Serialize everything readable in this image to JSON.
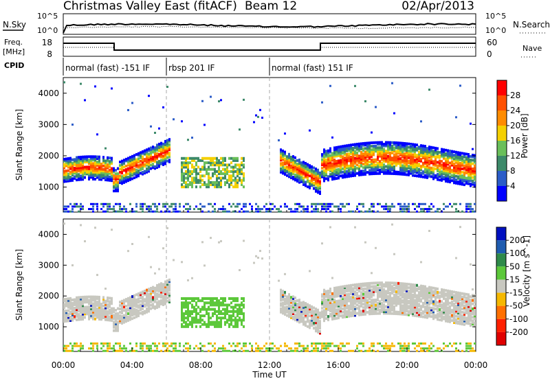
{
  "header": {
    "title": "Christmas Valley East (fitACF)",
    "beam": "Beam 12",
    "date": "02/Apr/2013"
  },
  "noise_panel": {
    "left_label": "N.Sky",
    "right_label": "N.Search",
    "left_ticks": [
      "10^5",
      "10^0"
    ],
    "right_ticks": [
      "10^5",
      "10^0"
    ]
  },
  "freq_panel": {
    "left_label_1": "Freq.",
    "left_label_2": "[MHz]",
    "left_ticks": [
      "18",
      "8"
    ],
    "right_label": "Nave",
    "right_ticks": [
      "60",
      "0"
    ]
  },
  "cpid": {
    "label": "CPID",
    "segments": [
      {
        "start": 0,
        "end": 6,
        "text": "normal (fast) -151 IF"
      },
      {
        "start": 6,
        "end": 12,
        "text": "rbsp 201 IF"
      },
      {
        "start": 12,
        "end": 24,
        "text": "normal (fast) 151 IF"
      }
    ]
  },
  "chart_data": [
    {
      "type": "heatmap",
      "name": "power",
      "ylabel": "Slant Range [km]",
      "xlim": [
        0,
        24
      ],
      "ylim": [
        200,
        4500
      ],
      "yticks": [
        1000,
        2000,
        3000,
        4000
      ],
      "colorbar": {
        "label": "Power [dB]",
        "ticks": [
          "4",
          "8",
          "12",
          "16",
          "20",
          "24",
          "28"
        ],
        "colors": [
          "#0000ff",
          "#2b5cc8",
          "#3d8a6a",
          "#6abf5a",
          "#f5d000",
          "#ff8c00",
          "#ff5000",
          "#ff0000"
        ]
      }
    },
    {
      "type": "heatmap",
      "name": "velocity",
      "ylabel": "Slant Range [km]",
      "xlabel": "Time UT",
      "xlim": [
        0,
        24
      ],
      "ylim": [
        200,
        4500
      ],
      "yticks": [
        1000,
        2000,
        3000,
        4000
      ],
      "xticks": [
        "00:00",
        "04:00",
        "08:00",
        "12:00",
        "16:00",
        "20:00",
        "00:00"
      ],
      "colorbar": {
        "label": "Velocity [m s^-1]",
        "ticks": [
          "200",
          "100",
          "50",
          "15",
          "-15",
          "-50",
          "-100",
          "-200"
        ],
        "colors": [
          "#0010c0",
          "#1f5cb0",
          "#2f8a4a",
          "#5cc83a",
          "#c8c8c0",
          "#f5b800",
          "#ff7000",
          "#ff2000",
          "#e00000"
        ]
      }
    }
  ]
}
